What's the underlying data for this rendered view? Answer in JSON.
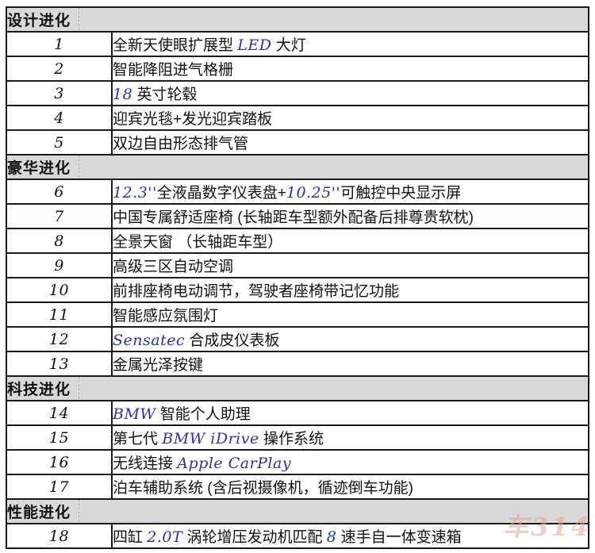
{
  "theme": {
    "border_color": "#1a1a1a",
    "header_bg": "#d9d9d9",
    "latin_color": "#31319c",
    "text_color": "#111111"
  },
  "watermark": {
    "text": "车314"
  },
  "table": {
    "sections": [
      {
        "title": "设计进化",
        "rows": [
          {
            "num": "1",
            "text": "全新天使眼扩展型 LED 大灯"
          },
          {
            "num": "2",
            "text": "智能降阻进气格栅"
          },
          {
            "num": "3",
            "text": "18 英寸轮毂"
          },
          {
            "num": "4",
            "text": "迎宾光毯+发光迎宾踏板"
          },
          {
            "num": "5",
            "text": "双边自由形态排气管"
          }
        ]
      },
      {
        "title": "豪华进化",
        "rows": [
          {
            "num": "6",
            "text": "12.3''全液晶数字仪表盘+10.25''可触控中央显示屏"
          },
          {
            "num": "7",
            "text": "中国专属舒适座椅 (长轴距车型额外配备后排尊贵软枕)"
          },
          {
            "num": "8",
            "text": "全景天窗 （长轴距车型）"
          },
          {
            "num": "9",
            "text": "高级三区自动空调"
          },
          {
            "num": "10",
            "text": "前排座椅电动调节，驾驶者座椅带记忆功能"
          },
          {
            "num": "11",
            "text": "智能感应氛围灯"
          },
          {
            "num": "12",
            "text": "Sensatec 合成皮仪表板"
          },
          {
            "num": "13",
            "text": "金属光泽按键"
          }
        ]
      },
      {
        "title": "科技进化",
        "rows": [
          {
            "num": "14",
            "text": "BMW 智能个人助理"
          },
          {
            "num": "15",
            "text": "第七代 BMW iDrive 操作系统"
          },
          {
            "num": "16",
            "text": "无线连接 Apple CarPlay"
          },
          {
            "num": "17",
            "text": "泊车辅助系统 (含后视摄像机，循迹倒车功能)"
          }
        ]
      },
      {
        "title": "性能进化",
        "rows": [
          {
            "num": "18",
            "text": "四缸 2.0T 涡轮增压发动机匹配 8 速手自一体变速箱"
          }
        ]
      }
    ]
  }
}
